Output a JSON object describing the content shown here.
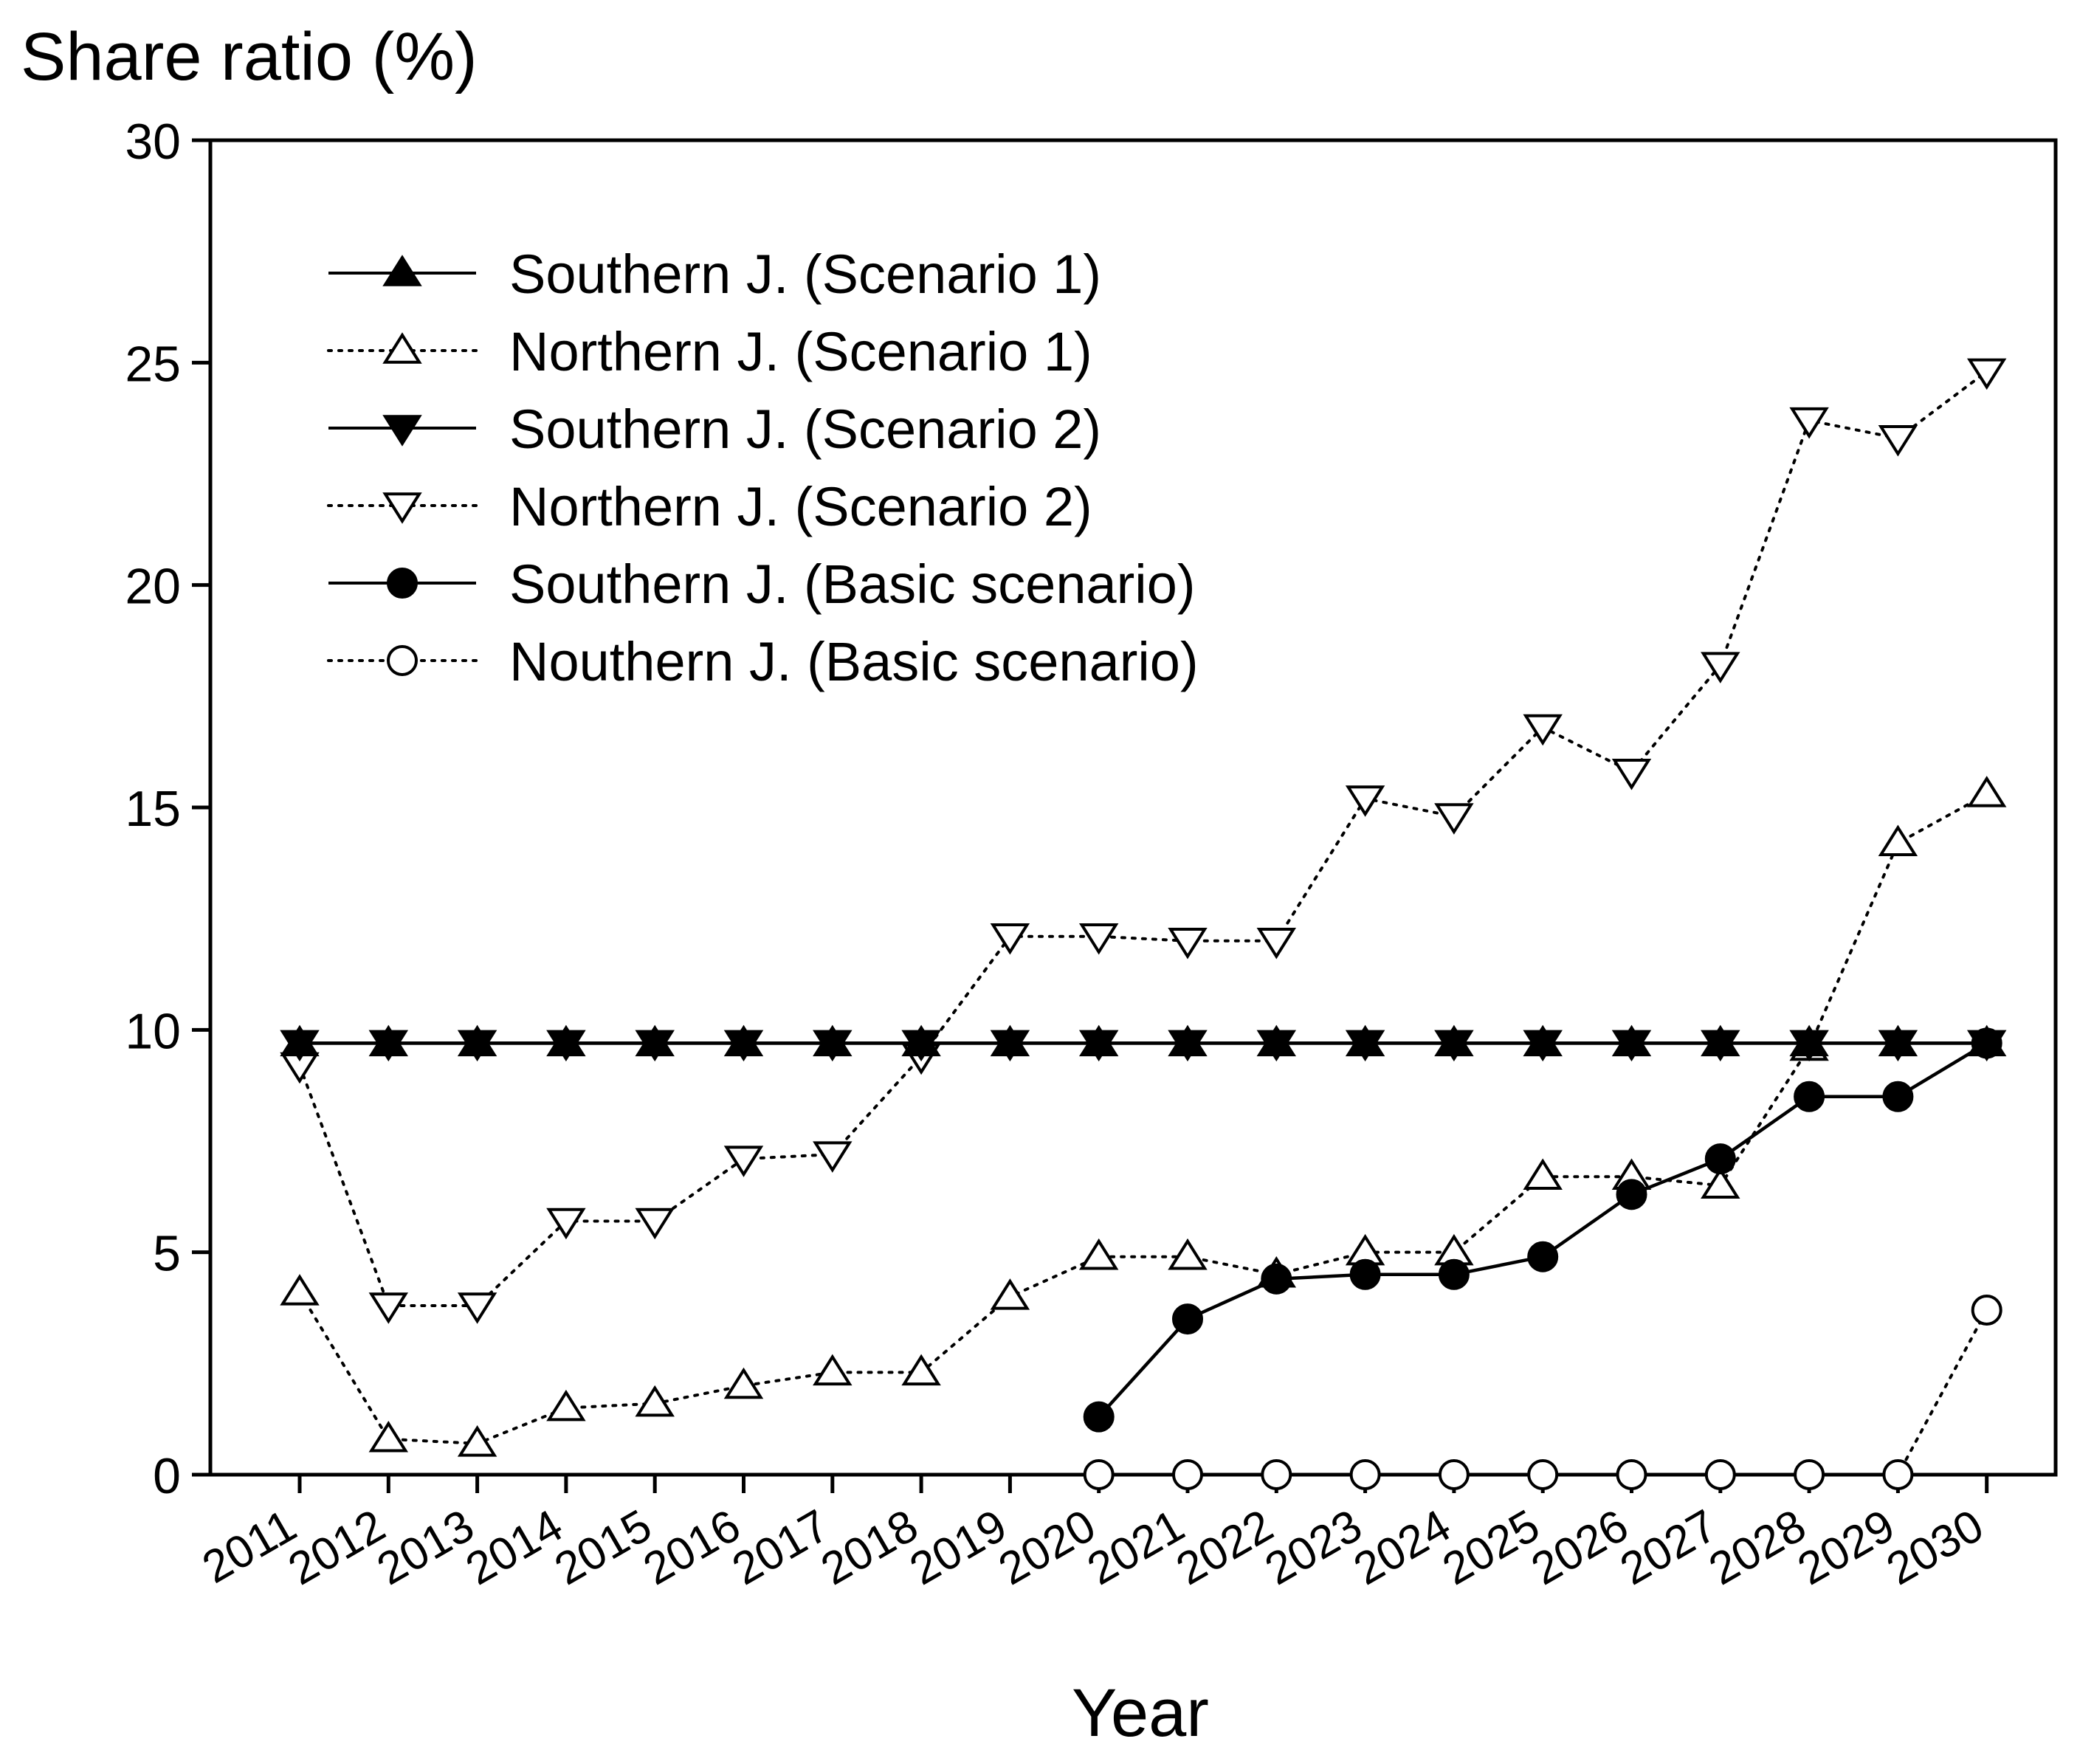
{
  "chart_data": {
    "type": "line",
    "title": "",
    "xlabel": "Year",
    "ylabel": "Share ratio (%)",
    "ylim": [
      0,
      30
    ],
    "yticks": [
      0,
      5,
      10,
      15,
      20,
      25,
      30
    ],
    "grid": false,
    "legend_position": "top-left",
    "categories": [
      "2011",
      "2012",
      "2013",
      "2014",
      "2015",
      "2016",
      "2017",
      "2018",
      "2019",
      "2020",
      "2021",
      "2022",
      "2023",
      "2024",
      "2025",
      "2026",
      "2027",
      "2028",
      "2029",
      "2030"
    ],
    "series": [
      {
        "name": "Southern J. (Scenario 1)",
        "marker": "triangle-up",
        "filled": true,
        "line": "solid",
        "values": [
          9.7,
          9.7,
          9.7,
          9.7,
          9.7,
          9.7,
          9.7,
          9.7,
          9.7,
          9.7,
          9.7,
          9.7,
          9.7,
          9.7,
          9.7,
          9.7,
          9.7,
          9.7,
          9.7,
          9.7
        ]
      },
      {
        "name": "Northern J. (Scenario 1)",
        "marker": "triangle-up",
        "filled": false,
        "line": "dotted",
        "values": [
          4.1,
          0.8,
          0.7,
          1.5,
          1.6,
          2.0,
          2.3,
          2.3,
          4.0,
          4.9,
          4.9,
          4.5,
          5.0,
          5.0,
          6.7,
          6.7,
          6.5,
          9.6,
          14.2,
          15.3
        ]
      },
      {
        "name": "Southern J. (Scenario 2)",
        "marker": "triangle-down",
        "filled": true,
        "line": "solid",
        "values": [
          9.7,
          9.7,
          9.7,
          9.7,
          9.7,
          9.7,
          9.7,
          9.7,
          9.7,
          9.7,
          9.7,
          9.7,
          9.7,
          9.7,
          9.7,
          9.7,
          9.7,
          9.7,
          9.7,
          9.7
        ]
      },
      {
        "name": "Northern J. (Scenario 2)",
        "marker": "triangle-down",
        "filled": false,
        "line": "dotted",
        "values": [
          9.2,
          3.8,
          3.8,
          5.7,
          5.7,
          7.1,
          7.2,
          9.4,
          12.1,
          12.1,
          12.0,
          12.0,
          15.2,
          14.8,
          16.8,
          15.8,
          18.2,
          23.7,
          23.3,
          24.8
        ]
      },
      {
        "name": "Southern J. (Basic scenario)",
        "marker": "circle",
        "filled": true,
        "line": "solid",
        "values": [
          null,
          null,
          null,
          null,
          null,
          null,
          null,
          null,
          null,
          1.3,
          3.5,
          4.4,
          4.5,
          4.5,
          4.9,
          6.3,
          7.1,
          8.5,
          8.5,
          9.7
        ]
      },
      {
        "name": "Nouthern J. (Basic scenario)",
        "marker": "circle",
        "filled": false,
        "line": "dotted",
        "values": [
          null,
          null,
          null,
          null,
          null,
          null,
          null,
          null,
          null,
          0,
          0,
          0,
          0,
          0,
          0,
          0,
          0,
          0,
          0,
          3.7
        ]
      }
    ]
  }
}
